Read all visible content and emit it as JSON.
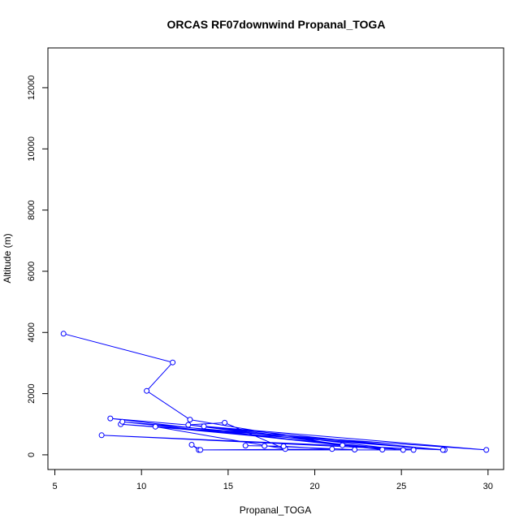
{
  "chart_data": {
    "type": "line",
    "title": "ORCAS RF07downwind Propanal_TOGA",
    "xlabel": "Propanal_TOGA",
    "ylabel": "Altitude (m)",
    "xlim": [
      4.6,
      30.9
    ],
    "ylim": [
      -480,
      13300
    ],
    "x_ticks": [
      5,
      10,
      15,
      20,
      25,
      30
    ],
    "y_ticks": [
      0,
      2000,
      4000,
      6000,
      8000,
      10000,
      12000
    ],
    "grid": false,
    "series": [
      {
        "color": "#0000ff",
        "marker": "open-circle",
        "points": [
          {
            "x": 5.5,
            "y": 3960
          },
          {
            "x": 11.8,
            "y": 3020
          },
          {
            "x": 10.3,
            "y": 2090
          },
          {
            "x": 12.8,
            "y": 1150
          },
          {
            "x": 21.6,
            "y": 310
          },
          {
            "x": 8.2,
            "y": 1190
          },
          {
            "x": 29.9,
            "y": 160
          },
          {
            "x": 8.8,
            "y": 1000
          },
          {
            "x": 27.5,
            "y": 160
          },
          {
            "x": 8.9,
            "y": 1080
          },
          {
            "x": 23.9,
            "y": 170
          },
          {
            "x": 12.7,
            "y": 980
          },
          {
            "x": 14.8,
            "y": 1050
          },
          {
            "x": 18.3,
            "y": 190
          },
          {
            "x": 10.8,
            "y": 920
          },
          {
            "x": 25.1,
            "y": 160
          },
          {
            "x": 13.6,
            "y": 930
          },
          {
            "x": 27.4,
            "y": 160
          },
          {
            "x": 7.7,
            "y": 640
          },
          {
            "x": 25.7,
            "y": 160
          },
          {
            "x": 13.3,
            "y": 160
          },
          {
            "x": 12.9,
            "y": 330
          },
          {
            "x": 13.4,
            "y": 160
          },
          {
            "x": 21.0,
            "y": 190
          },
          {
            "x": 18.2,
            "y": 280
          },
          {
            "x": 16.0,
            "y": 300
          },
          {
            "x": 17.1,
            "y": 290
          },
          {
            "x": 22.3,
            "y": 170
          }
        ]
      }
    ]
  }
}
